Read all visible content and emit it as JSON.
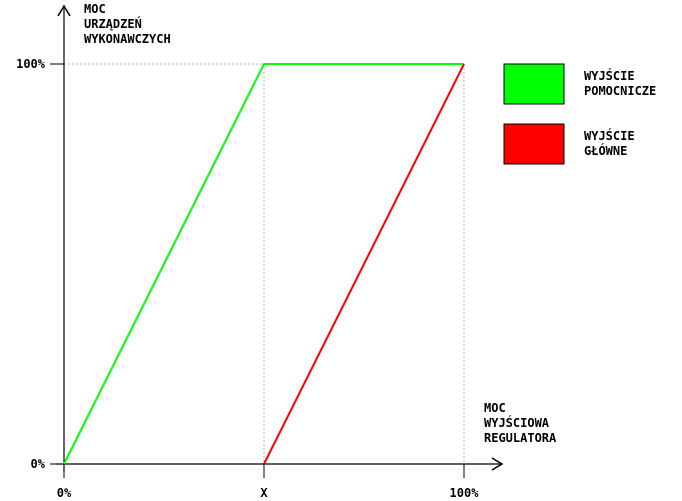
{
  "chart_data": {
    "type": "line",
    "ylabel": [
      "MOC",
      "URZĄDZEŃ",
      "WYKONAWCZYCH"
    ],
    "xlabel": [
      "MOC",
      "WYJŚCIOWA",
      "REGULATORA"
    ],
    "x_ticks": [
      "0%",
      "X",
      "100%"
    ],
    "y_ticks": [
      "0%",
      "100%"
    ],
    "xlim": [
      0,
      100
    ],
    "ylim": [
      0,
      100
    ],
    "x_split": 50,
    "series": [
      {
        "name": [
          "WYJŚCIE",
          "POMOCNICZE"
        ],
        "color": "#00ff00",
        "points": [
          [
            0,
            0
          ],
          [
            50,
            100
          ],
          [
            100,
            100
          ]
        ]
      },
      {
        "name": [
          "WYJŚCIE",
          "GŁÓWNE"
        ],
        "color": "#ff0000",
        "points": [
          [
            50,
            0
          ],
          [
            100,
            100
          ]
        ]
      }
    ],
    "guides": "dotted grey lines at y=100% and at x=X, x=100%"
  }
}
